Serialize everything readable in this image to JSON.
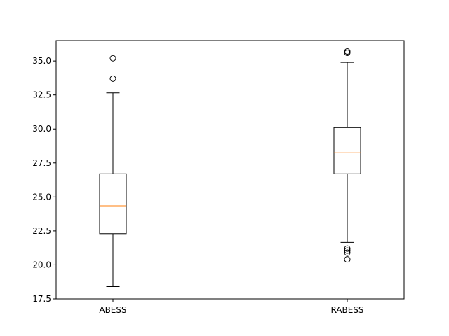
{
  "chart_data": {
    "type": "box",
    "categories": [
      "ABESS",
      "RABESS"
    ],
    "ylim": [
      17.5,
      36.5
    ],
    "yticks": [
      17.5,
      20.0,
      22.5,
      25.0,
      27.5,
      30.0,
      32.5,
      35.0
    ],
    "ytick_labels": [
      "17.5",
      "20.0",
      "22.5",
      "25.0",
      "27.5",
      "30.0",
      "32.5",
      "35.0"
    ],
    "boxes": [
      {
        "name": "ABESS",
        "whisker_low": 18.4,
        "q1": 22.3,
        "median": 24.35,
        "q3": 26.7,
        "whisker_high": 32.65,
        "outliers": [
          33.7,
          35.2
        ]
      },
      {
        "name": "RABESS",
        "whisker_low": 21.65,
        "q1": 26.7,
        "median": 28.25,
        "q3": 30.1,
        "whisker_high": 34.9,
        "outliers": [
          20.4,
          20.9,
          21.05,
          21.2,
          35.6,
          35.7
        ]
      }
    ],
    "title": "",
    "xlabel": "",
    "ylabel": "",
    "grid": false,
    "colors": {
      "box": "#000000",
      "median": "#ff7f0e",
      "outlier": "#000000"
    }
  }
}
